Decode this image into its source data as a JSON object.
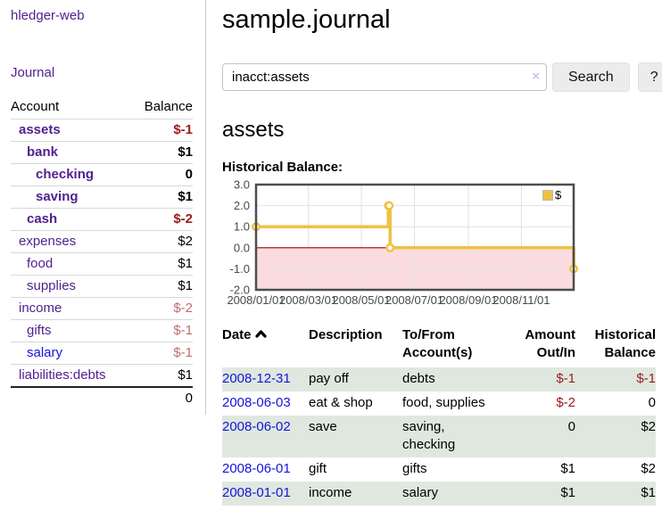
{
  "colors": {
    "accent_purple": "#52218f",
    "link_blue": "#1414dd",
    "negative_strong": "#9a1c1c",
    "negative_soft": "#bc6f6f",
    "row_stripe_green": "#dfe8df",
    "chart_gold": "#EDC240",
    "chart_zero_line": "#aa0000",
    "chart_negative_region": "#fbdcde",
    "chart_grid": "#e2e2e2",
    "chart_border": "#4d4d4d"
  },
  "sidebar": {
    "brand": "hledger-web",
    "journal_link": "Journal",
    "columns": {
      "account": "Account",
      "balance": "Balance"
    },
    "accounts": [
      {
        "name": "assets",
        "balance": "$-1"
      },
      {
        "name": "bank",
        "balance": "$1"
      },
      {
        "name": "checking",
        "balance": "0"
      },
      {
        "name": "saving",
        "balance": "$1"
      },
      {
        "name": "cash",
        "balance": "$-2"
      },
      {
        "name": "expenses",
        "balance": "$2"
      },
      {
        "name": "food",
        "balance": "$1"
      },
      {
        "name": "supplies",
        "balance": "$1"
      },
      {
        "name": "income",
        "balance": "$-2"
      },
      {
        "name": "gifts",
        "balance": "$-1"
      },
      {
        "name": "salary",
        "balance": "$-1"
      },
      {
        "name": "liabilities:debts",
        "balance": "$1"
      }
    ],
    "total": "0"
  },
  "main": {
    "title": "sample.journal",
    "account_heading": "assets",
    "chart_label": "Historical Balance:"
  },
  "search": {
    "value": "inacct:assets",
    "clear_icon": "×",
    "search_button": "Search",
    "help_button": "?"
  },
  "chart_data": {
    "type": "line",
    "title": "Historical Balance",
    "step": true,
    "series": [
      {
        "name": "$",
        "color": "#EDC240",
        "points": [
          [
            "2008/01/01",
            1
          ],
          [
            "2008/06/01",
            2
          ],
          [
            "2008/06/02",
            2
          ],
          [
            "2008/06/03",
            0
          ],
          [
            "2008/12/31",
            -1
          ]
        ]
      }
    ],
    "x_range": [
      "2008/01/01",
      "2008/12/31"
    ],
    "ylim": [
      -2,
      3
    ],
    "y_ticks": [
      3,
      2,
      1,
      0,
      -1,
      -2
    ],
    "y_tick_labels": [
      "3.0",
      "2.0",
      "1.0",
      "0.0",
      "-1.0",
      "-2.0"
    ],
    "x_tick_labels": [
      "2008/01/01",
      "2008/03/01",
      "2008/05/01",
      "2008/07/01",
      "2008/09/01",
      "2008/11/01"
    ],
    "grid": true,
    "legend_position": "top-right",
    "legend_label": "$",
    "negative_region": true
  },
  "register": {
    "headers": {
      "date": "Date",
      "description": "Description",
      "accounts": "To/From Account(s)",
      "amount": "Amount Out/In",
      "balance": "Historical Balance"
    },
    "rows": [
      {
        "date": "2008-12-31",
        "description": "pay off",
        "accounts": "debts",
        "amount": "$-1",
        "balance": "$-1"
      },
      {
        "date": "2008-06-03",
        "description": "eat & shop",
        "accounts": "food, supplies",
        "amount": "$-2",
        "balance": "0"
      },
      {
        "date": "2008-06-02",
        "description": "save",
        "accounts": "saving, checking",
        "amount": "0",
        "balance": "$2"
      },
      {
        "date": "2008-06-01",
        "description": "gift",
        "accounts": "gifts",
        "amount": "$1",
        "balance": "$2"
      },
      {
        "date": "2008-01-01",
        "description": "income",
        "accounts": "salary",
        "amount": "$1",
        "balance": "$1"
      }
    ]
  }
}
